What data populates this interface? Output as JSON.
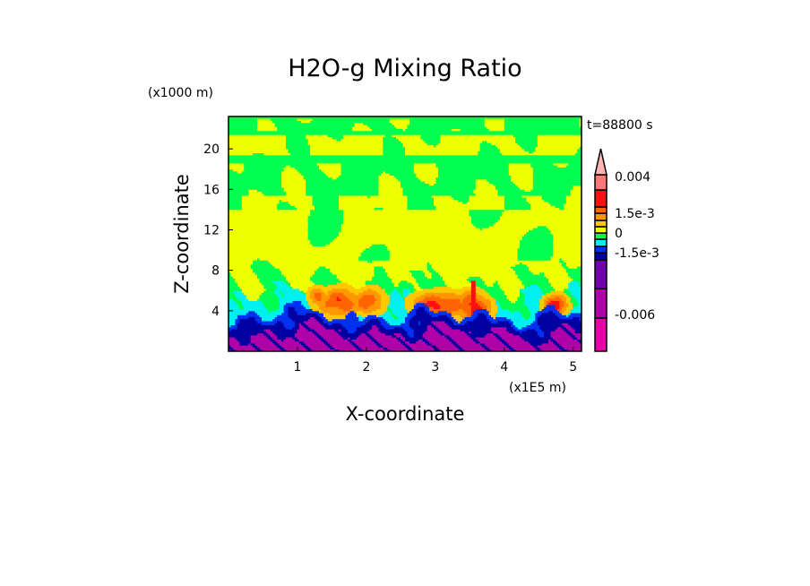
{
  "chart_data": {
    "type": "heatmap",
    "title": "H2O-g Mixing Ratio",
    "xlabel": "X-coordinate",
    "ylabel": "Z-coordinate",
    "x_scale_label": "(x1E5 m)",
    "y_scale_label": "(x1000 m)",
    "time_label": "t=88800 s",
    "xlim": [
      0,
      5.12
    ],
    "ylim": [
      0,
      23.2
    ],
    "x_ticks": [
      1,
      2,
      3,
      4,
      5
    ],
    "x_tick_labels": [
      "1",
      "2",
      "3",
      "4",
      "5"
    ],
    "y_ticks": [
      4,
      8,
      12,
      16,
      20
    ],
    "y_tick_labels": [
      "4",
      "8",
      "12",
      "16",
      "20"
    ],
    "levels": [
      -0.006,
      -0.004,
      -0.002,
      -0.0015,
      -0.001,
      -0.0005,
      0,
      0.0005,
      0.001,
      0.0015,
      0.002,
      0.004
    ],
    "colors": [
      "#e800a8",
      "#b000a8",
      "#7000a8",
      "#0000a0",
      "#0030f0",
      "#00f0f0",
      "#00ff50",
      "#f0ff00",
      "#ffc800",
      "#ff9800",
      "#ff6400",
      "#ff1010",
      "#ff7878"
    ],
    "extend_color": "#ffb4b4",
    "colorbar_labels": [
      {
        "value": 0.004,
        "text": "0.004"
      },
      {
        "value": 0.0015,
        "text": "1.5e-3"
      },
      {
        "value": 0,
        "text": "0"
      },
      {
        "value": -0.0015,
        "text": "-1.5e-3"
      },
      {
        "value": -0.006,
        "text": "-0.006"
      }
    ],
    "field_description_bands": [
      {
        "z": [
          0,
          2
        ],
        "value": -0.005
      },
      {
        "z": [
          2,
          3.6
        ],
        "value": -0.0017
      },
      {
        "z": [
          3.6,
          5.5
        ],
        "value": -0.0007
      },
      {
        "z": [
          5.5,
          14
        ],
        "value": 0.0003
      },
      {
        "z": [
          14,
          23.2
        ],
        "value": -0.0002
      }
    ]
  }
}
